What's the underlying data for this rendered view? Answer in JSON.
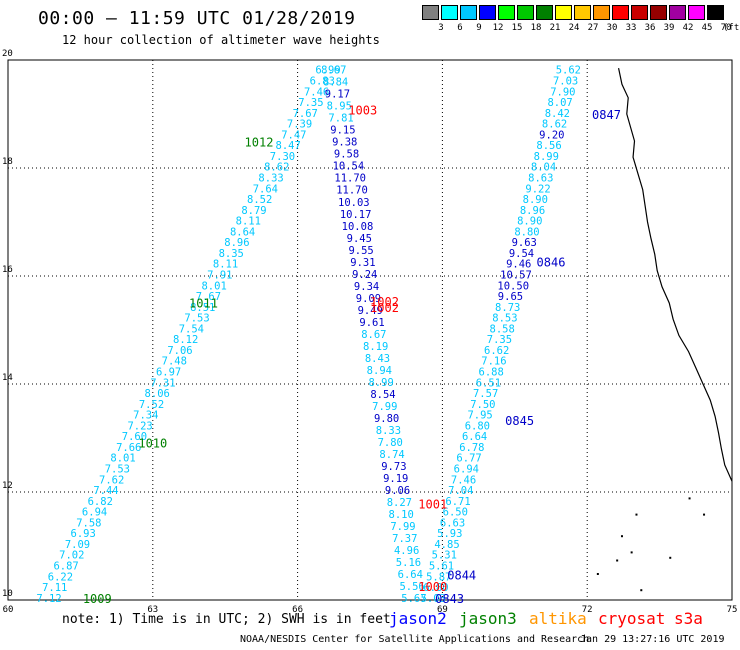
{
  "header": {
    "title": "00:00 — 11:59 UTC 01/28/2019",
    "subtitle": "12 hour collection of altimeter wave heights"
  },
  "colorbar": {
    "labels": [
      "3",
      "6",
      "9",
      "12",
      "15",
      "18",
      "21",
      "24",
      "27",
      "30",
      "33",
      "36",
      "39",
      "42",
      "45",
      "70",
      "(ft)"
    ],
    "colors": [
      "#808080",
      "#00ffff",
      "#00c8ff",
      "#0000ff",
      "#00ff00",
      "#00c800",
      "#008000",
      "#ffff00",
      "#ffc800",
      "#ff9600",
      "#ff0000",
      "#c80000",
      "#960000",
      "#a000a0",
      "#ff00ff",
      "#000000"
    ]
  },
  "axes": {
    "lon_ticks": [
      60,
      63,
      66,
      69,
      72,
      75
    ],
    "lat_ticks": [
      10,
      12,
      14,
      16,
      18,
      20
    ],
    "lon_range": [
      60,
      75
    ],
    "lat_range": [
      10,
      20
    ]
  },
  "tracks": [
    {
      "id": "t1",
      "color": "#00c8ff",
      "top": [
        66.63,
        19.82
      ],
      "bottom": [
        60.85,
        10.04
      ],
      "values": [
        "6.99",
        "6.83",
        "7.46",
        "7.35",
        "7.67",
        "7.39",
        "7.47",
        "8.47",
        "7.30",
        "8.62",
        "8.33",
        "7.64",
        "8.52",
        "8.79",
        "8.11",
        "8.64",
        "8.96",
        "8.35",
        "8.11",
        "7.91",
        "8.01",
        "7.67",
        "8.51",
        "7.53",
        "7.54",
        "8.12",
        "7.06",
        "7.48",
        "6.97",
        "7.31",
        "8.06",
        "7.52",
        "7.34",
        "7.23",
        "7.60",
        "7.66",
        "8.01",
        "7.53",
        "7.62",
        "7.44",
        "6.82",
        "6.94",
        "7.58",
        "6.93",
        "7.09",
        "7.02",
        "6.87",
        "6.22",
        "7.11",
        "7.12"
      ]
    },
    {
      "id": "t2",
      "color": "#00c8ff",
      "top": [
        66.75,
        19.82
      ],
      "bottom": [
        68.41,
        10.04
      ],
      "values": [
        "8.67",
        "8.84",
        "9.17",
        "8.95",
        "7.81",
        "9.15",
        "9.38",
        "9.58",
        "10.54",
        "11.70",
        "11.70",
        "10.03",
        "10.17",
        "10.08",
        "9.45",
        "9.55",
        "9.31",
        "9.24",
        "9.34",
        "9.09",
        "9.49",
        "9.61",
        "8.67",
        "8.19",
        "8.43",
        "8.94",
        "8.99",
        "8.54",
        "7.99",
        "9.80",
        "8.33",
        "7.80",
        "8.74",
        "9.73",
        "9.19",
        "9.06",
        "8.27",
        "8.10",
        "7.99",
        "7.37",
        "4.96",
        "5.16",
        "6.64",
        "5.56",
        "5.67"
      ],
      "dark_indices": [
        2,
        5,
        6,
        7,
        8,
        9,
        10,
        11,
        12,
        13,
        14,
        15,
        16,
        17,
        18,
        19,
        20,
        21,
        27,
        29,
        33,
        34,
        35
      ]
    },
    {
      "id": "t3",
      "color": "#00c8ff",
      "top": [
        71.61,
        19.82
      ],
      "bottom": [
        68.81,
        10.04
      ],
      "values": [
        "5.62",
        "7.03",
        "7.90",
        "8.07",
        "8.42",
        "8.62",
        "9.20",
        "8.56",
        "8.99",
        "8.04",
        "8.63",
        "9.22",
        "8.90",
        "8.96",
        "8.90",
        "8.80",
        "9.63",
        "9.54",
        "9.46",
        "10.57",
        "10.50",
        "9.65",
        "8.73",
        "8.53",
        "8.58",
        "7.35",
        "6.62",
        "7.16",
        "6.88",
        "6.51",
        "7.57",
        "7.50",
        "7.95",
        "6.80",
        "6.64",
        "6.78",
        "6.77",
        "6.94",
        "7.46",
        "7.04",
        "6.71",
        "6.50",
        "6.63",
        "5.93",
        "4.85",
        "5.31",
        "5.61",
        "5.87",
        "6.80",
        "5.03"
      ],
      "dark_indices": [
        6,
        16,
        17,
        18,
        19,
        20,
        21
      ]
    }
  ],
  "time_labels": [
    {
      "text": "1003",
      "color": "#ff0000",
      "lon": 67.35,
      "lat": 19.08
    },
    {
      "text": "1012",
      "color": "#008000",
      "lon": 65.2,
      "lat": 18.49
    },
    {
      "text": "1011",
      "color": "#008000",
      "lon": 64.05,
      "lat": 15.51
    },
    {
      "text": "1010",
      "color": "#008000",
      "lon": 63.0,
      "lat": 12.92
    },
    {
      "text": "1009",
      "color": "#008000",
      "lon": 61.85,
      "lat": 10.04
    },
    {
      "text": "1002",
      "color": "#ff0000",
      "lon": 67.8,
      "lat": 15.54
    },
    {
      "text": "1002",
      "color": "#ff0000",
      "lon": 67.8,
      "lat": 15.43
    },
    {
      "text": "1001",
      "color": "#ff0000",
      "lon": 68.8,
      "lat": 11.79
    },
    {
      "text": "1000",
      "color": "#ff0000",
      "lon": 68.8,
      "lat": 10.26
    },
    {
      "text": "0847",
      "color": "#0000c8",
      "lon": 72.4,
      "lat": 19.0
    },
    {
      "text": "0846",
      "color": "#0000c8",
      "lon": 71.25,
      "lat": 16.27
    },
    {
      "text": "0845",
      "color": "#0000c8",
      "lon": 70.6,
      "lat": 13.33
    },
    {
      "text": "0844",
      "color": "#0000c8",
      "lon": 69.4,
      "lat": 10.47
    },
    {
      "text": "0843",
      "color": "#0000c8",
      "lon": 69.15,
      "lat": 10.04
    }
  ],
  "coastline": [
    [
      72.65,
      19.85
    ],
    [
      72.72,
      19.55
    ],
    [
      72.85,
      19.3
    ],
    [
      72.82,
      19.0
    ],
    [
      72.9,
      18.75
    ],
    [
      72.98,
      18.5
    ],
    [
      72.95,
      18.2
    ],
    [
      73.05,
      17.9
    ],
    [
      73.15,
      17.6
    ],
    [
      73.2,
      17.3
    ],
    [
      73.25,
      17.0
    ],
    [
      73.32,
      16.7
    ],
    [
      73.4,
      16.4
    ],
    [
      73.45,
      16.1
    ],
    [
      73.55,
      15.8
    ],
    [
      73.7,
      15.5
    ],
    [
      73.78,
      15.2
    ],
    [
      73.9,
      14.9
    ],
    [
      74.1,
      14.6
    ],
    [
      74.25,
      14.3
    ],
    [
      74.4,
      14.0
    ],
    [
      74.55,
      13.7
    ],
    [
      74.65,
      13.4
    ],
    [
      74.72,
      13.1
    ],
    [
      74.78,
      12.8
    ],
    [
      74.85,
      12.5
    ],
    [
      75.0,
      12.2
    ]
  ],
  "islands": [
    [
      74.1,
      11.9
    ],
    [
      73.0,
      11.6
    ],
    [
      72.7,
      11.2
    ],
    [
      74.4,
      11.6
    ],
    [
      72.9,
      10.9
    ],
    [
      73.7,
      10.8
    ],
    [
      72.2,
      10.5
    ],
    [
      73.1,
      10.2
    ],
    [
      72.6,
      10.75
    ]
  ],
  "footer": {
    "note": "note: 1) Time is in UTC; 2) SWH is in feet",
    "legend": [
      {
        "text": "jason2",
        "color": "#0000ff",
        "x": 389
      },
      {
        "text": "jason3",
        "color": "#008000",
        "x": 459
      },
      {
        "text": "altika",
        "color": "#ff9600",
        "x": 529
      },
      {
        "text": "cryosat",
        "color": "#ff0000",
        "x": 598
      },
      {
        "text": "s3a",
        "color": "#ff0000",
        "x": 674
      }
    ],
    "credit": "NOAA/NESDIS Center for Satellite Applications and Research",
    "timestamp": "Jan 29 13:27:16 UTC 2019"
  }
}
